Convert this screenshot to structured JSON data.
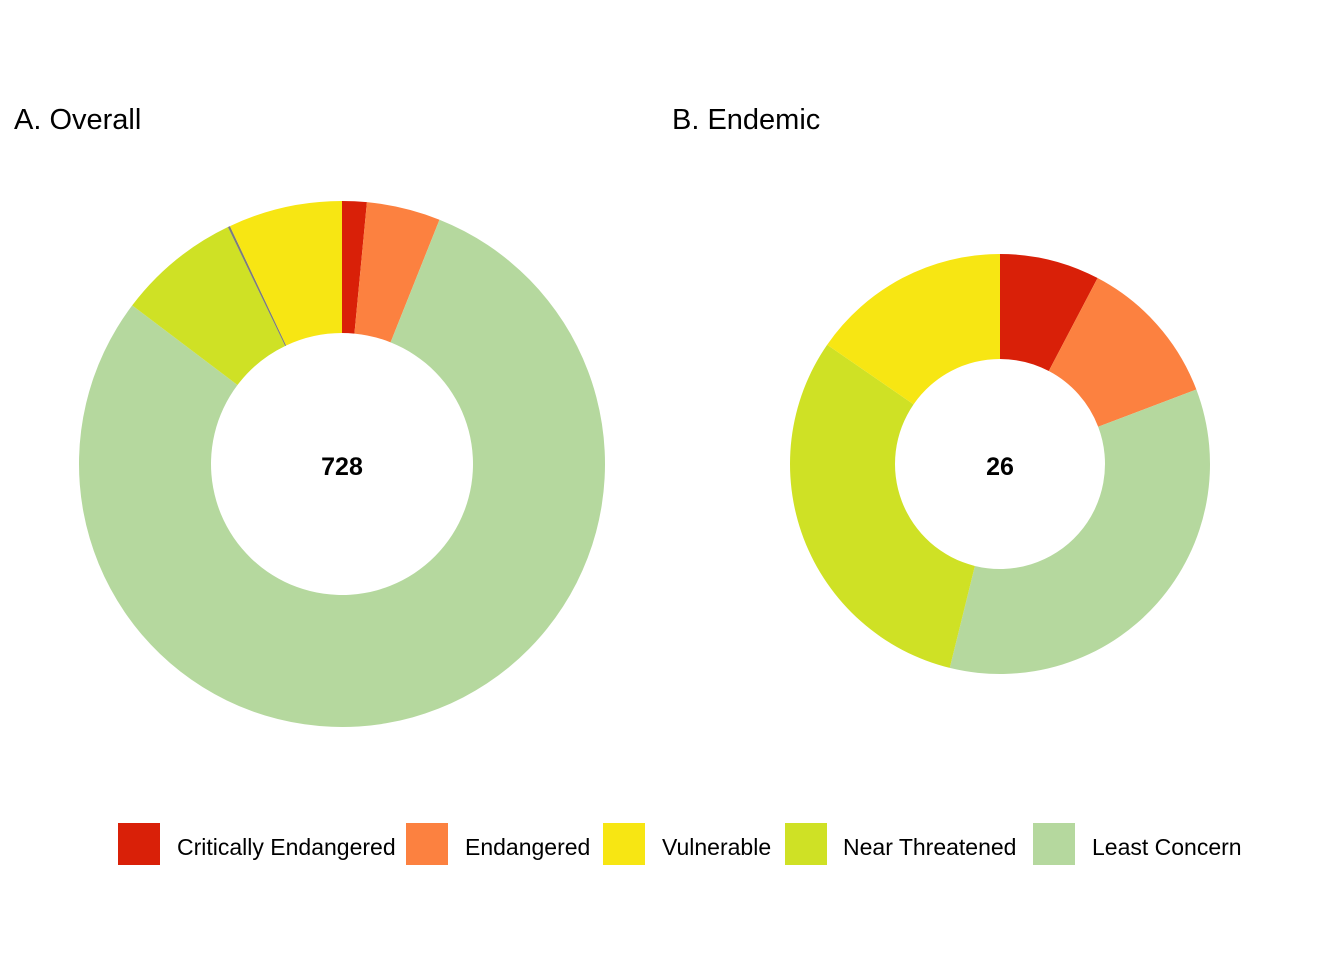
{
  "colors": {
    "critically_endangered": "#d92008",
    "endangered": "#fc8140",
    "vulnerable": "#f7e613",
    "near_threatened": "#cfe125",
    "least_concern": "#b5d89e",
    "separator": "#7d7d7d"
  },
  "chart_data": [
    {
      "type": "pie",
      "variant": "donut",
      "title": "A. Overall",
      "center_label": "728",
      "total": 728,
      "slices": [
        {
          "category": "Critically Endangered",
          "value": 11,
          "color": "#d92008"
        },
        {
          "category": "Endangered",
          "value": 33,
          "color": "#fc8140"
        },
        {
          "category": "Least Concern",
          "value": 577,
          "color": "#b5d89e"
        },
        {
          "category": "Near Threatened",
          "value": 55,
          "color": "#cfe125"
        },
        {
          "category": "",
          "value": 1,
          "color": "#7d7d7d"
        },
        {
          "category": "Vulnerable",
          "value": 51,
          "color": "#f7e613"
        }
      ]
    },
    {
      "type": "pie",
      "variant": "donut",
      "title": "B. Endemic",
      "center_label": "26",
      "total": 26,
      "slices": [
        {
          "category": "Critically Endangered",
          "value": 2,
          "color": "#d92008"
        },
        {
          "category": "Endangered",
          "value": 3,
          "color": "#fc8140"
        },
        {
          "category": "Least Concern",
          "value": 9,
          "color": "#b5d89e"
        },
        {
          "category": "Near Threatened",
          "value": 8,
          "color": "#cfe125"
        },
        {
          "category": "Vulnerable",
          "value": 4,
          "color": "#f7e613"
        }
      ]
    }
  ],
  "legend": {
    "placement": "bottom",
    "items": [
      {
        "label": "Critically Endangered",
        "color": "#d92008"
      },
      {
        "label": "Endangered",
        "color": "#fc8140"
      },
      {
        "label": "Vulnerable",
        "color": "#f7e613"
      },
      {
        "label": "Near Threatened",
        "color": "#cfe125"
      },
      {
        "label": "Least Concern",
        "color": "#b5d89e"
      }
    ]
  }
}
